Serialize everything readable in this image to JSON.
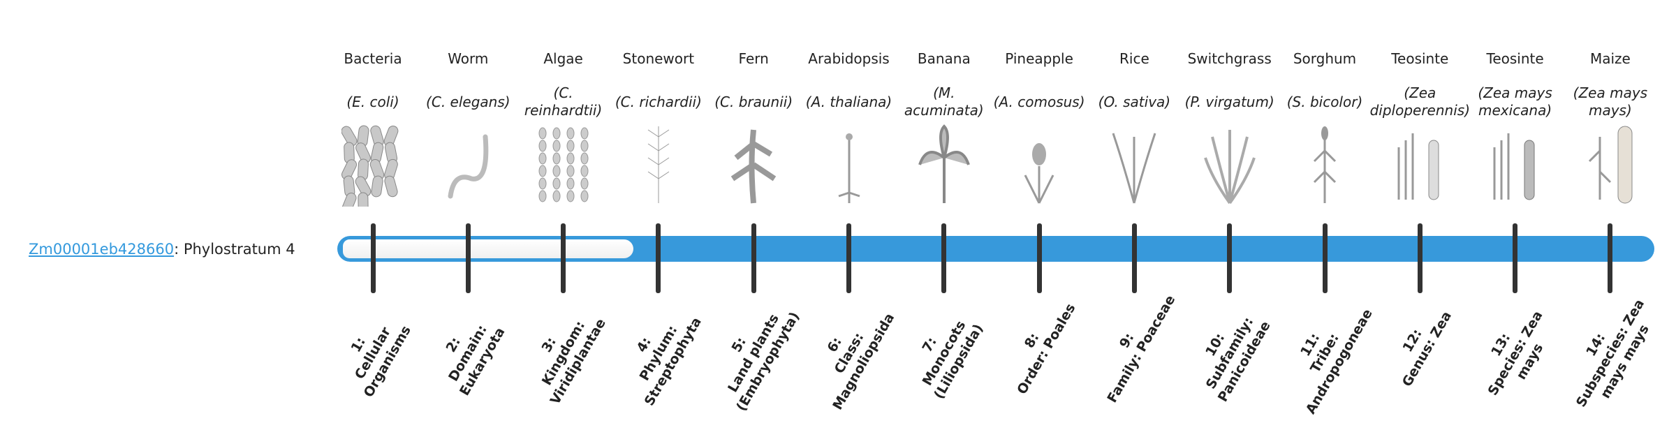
{
  "gene": {
    "id": "Zm00001eb428660",
    "suffix": ": Phylostratum 4"
  },
  "phylostratum": 4,
  "colors": {
    "bar": "#3799db",
    "link": "#3399dd",
    "tick": "#333333"
  },
  "organisms": [
    {
      "common": "Bacteria",
      "species": "(E. coli)",
      "icon": "bacteria-image",
      "level_num": "1:",
      "level": "Cellular Organisms"
    },
    {
      "common": "Worm",
      "species": "(C. elegans)",
      "icon": "worm-image",
      "level_num": "2:",
      "level": "Domain: Eukaryota"
    },
    {
      "common": "Algae",
      "species": "(C. reinhardtii)",
      "icon": "algae-image",
      "level_num": "3:",
      "level": "Kingdom: Viridiplantae"
    },
    {
      "common": "Stonewort",
      "species": "(C. richardii)",
      "icon": "stonewort-image",
      "level_num": "4:",
      "level": "Phylum: Streptophyta"
    },
    {
      "common": "Fern",
      "species": "(C. braunii)",
      "icon": "fern-image",
      "level_num": "5:",
      "level": "Land plants (Embryophyta)"
    },
    {
      "common": "Arabidopsis",
      "species": "(A. thaliana)",
      "icon": "arabidopsis-image",
      "level_num": "6:",
      "level": "Class: Magnoliopsida"
    },
    {
      "common": "Banana",
      "species": "(M. acuminata)",
      "icon": "banana-image",
      "level_num": "7:",
      "level": "Monocots (Liliopsida)"
    },
    {
      "common": "Pineapple",
      "species": "(A. comosus)",
      "icon": "pineapple-image",
      "level_num": "8:",
      "level": "Order: Poales"
    },
    {
      "common": "Rice",
      "species": "(O. sativa)",
      "icon": "rice-image",
      "level_num": "9:",
      "level": "Family: Poaceae"
    },
    {
      "common": "Switchgrass",
      "species": "(P. virgatum)",
      "icon": "switchgrass-image",
      "level_num": "10:",
      "level": "Subfamily: Panicoideae"
    },
    {
      "common": "Sorghum",
      "species": "(S. bicolor)",
      "icon": "sorghum-image",
      "level_num": "11:",
      "level": "Tribe: Andropogoneae"
    },
    {
      "common": "Teosinte",
      "species": "(Zea diploperennis)",
      "icon": "teosinte-image",
      "level_num": "12:",
      "level": "Genus: Zea"
    },
    {
      "common": "Teosinte",
      "species": "(Zea mays mexicana)",
      "icon": "teosinte-mexicana-image",
      "level_num": "13:",
      "level": "Species: Zea mays"
    },
    {
      "common": "Maize",
      "species": "(Zea mays mays)",
      "icon": "maize-image",
      "level_num": "14:",
      "level": "Subspecies: Zea mays mays"
    }
  ]
}
